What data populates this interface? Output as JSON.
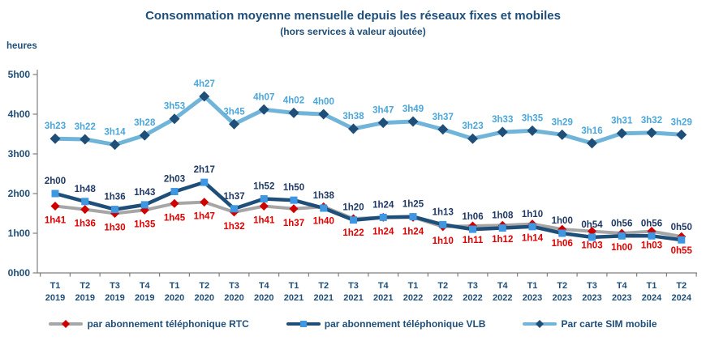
{
  "palette": {
    "text_blue": "#1F4E79",
    "axis_gray": "#7F7F7F"
  },
  "chart_data": {
    "type": "line",
    "title": "Consommation moyenne mensuelle depuis les réseaux fixes et mobiles",
    "subtitle": "(hors services à valeur ajoutée)",
    "legend_position": "bottom",
    "y_axis": {
      "label": "heures",
      "ticks": [
        "0h00",
        "1h00",
        "2h00",
        "3h00",
        "4h00",
        "5h00"
      ],
      "range_minutes": [
        0,
        300
      ],
      "grid": false
    },
    "x_axis": {
      "categories": [
        {
          "q": "T1",
          "y": "2019"
        },
        {
          "q": "T2",
          "y": "2019"
        },
        {
          "q": "T3",
          "y": "2019"
        },
        {
          "q": "T4",
          "y": "2019"
        },
        {
          "q": "T1",
          "y": "2020"
        },
        {
          "q": "T2",
          "y": "2020"
        },
        {
          "q": "T3",
          "y": "2020"
        },
        {
          "q": "T4",
          "y": "2020"
        },
        {
          "q": "T1",
          "y": "2021"
        },
        {
          "q": "T2",
          "y": "2021"
        },
        {
          "q": "T3",
          "y": "2021"
        },
        {
          "q": "T4",
          "y": "2021"
        },
        {
          "q": "T1",
          "y": "2022"
        },
        {
          "q": "T2",
          "y": "2022"
        },
        {
          "q": "T3",
          "y": "2022"
        },
        {
          "q": "T4",
          "y": "2022"
        },
        {
          "q": "T1",
          "y": "2023"
        },
        {
          "q": "T2",
          "y": "2023"
        },
        {
          "q": "T3",
          "y": "2023"
        },
        {
          "q": "T4",
          "y": "2023"
        },
        {
          "q": "T1",
          "y": "2024"
        },
        {
          "q": "T2",
          "y": "2024"
        }
      ]
    },
    "series": [
      {
        "id": "rtc",
        "name": "par abonnement téléphonique RTC",
        "line_color": "#A6A6A6",
        "line_width": 4,
        "marker": "diamond",
        "marker_color": "#D00000",
        "label_color": "#E00000",
        "label_position": "below",
        "labels": [
          "1h41",
          "1h36",
          "1h30",
          "1h35",
          "1h45",
          "1h47",
          "1h32",
          "1h41",
          "1h37",
          "1h40",
          "1h22",
          "1h24",
          "1h24",
          "1h10",
          "1h11",
          "1h12",
          "1h14",
          "1h06",
          "1h03",
          "1h00",
          "1h03",
          "0h55"
        ],
        "minutes": [
          101,
          96,
          90,
          95,
          105,
          107,
          92,
          101,
          97,
          100,
          82,
          84,
          84,
          70,
          71,
          72,
          74,
          66,
          63,
          60,
          63,
          55
        ]
      },
      {
        "id": "vlb",
        "name": "par abonnement téléphonique VLB",
        "line_color": "#1F4E79",
        "line_width": 4.5,
        "marker": "square",
        "marker_color": "#3E97E0",
        "label_color": "#1F3864",
        "label_position": "above",
        "labels": [
          "2h00",
          "1h48",
          "1h36",
          "1h43",
          "2h03",
          "2h17",
          "1h37",
          "1h52",
          "1h50",
          "1h38",
          "1h20",
          "1h24",
          "1h25",
          "1h13",
          "1h06",
          "1h08",
          "1h10",
          "1h00",
          "0h54",
          "0h56",
          "0h56",
          "0h50"
        ],
        "minutes": [
          120,
          108,
          96,
          103,
          123,
          137,
          97,
          112,
          110,
          98,
          80,
          84,
          85,
          73,
          66,
          68,
          70,
          60,
          54,
          56,
          56,
          50
        ]
      },
      {
        "id": "sim",
        "name": "Par carte SIM mobile",
        "line_color": "#70B5D9",
        "line_width": 5,
        "marker": "diamond",
        "marker_color": "#1F4E79",
        "label_color": "#4BA6DA",
        "label_position": "above",
        "labels": [
          "3h23",
          "3h22",
          "3h14",
          "3h28",
          "3h53",
          "4h27",
          "3h45",
          "4h07",
          "4h02",
          "4h00",
          "3h38",
          "3h47",
          "3h49",
          "3h37",
          "3h23",
          "3h33",
          "3h35",
          "3h29",
          "3h16",
          "3h31",
          "3h32",
          "3h29"
        ],
        "minutes": [
          203,
          202,
          194,
          208,
          233,
          267,
          225,
          247,
          242,
          240,
          218,
          227,
          229,
          217,
          203,
          213,
          215,
          209,
          196,
          211,
          212,
          209
        ]
      }
    ]
  }
}
